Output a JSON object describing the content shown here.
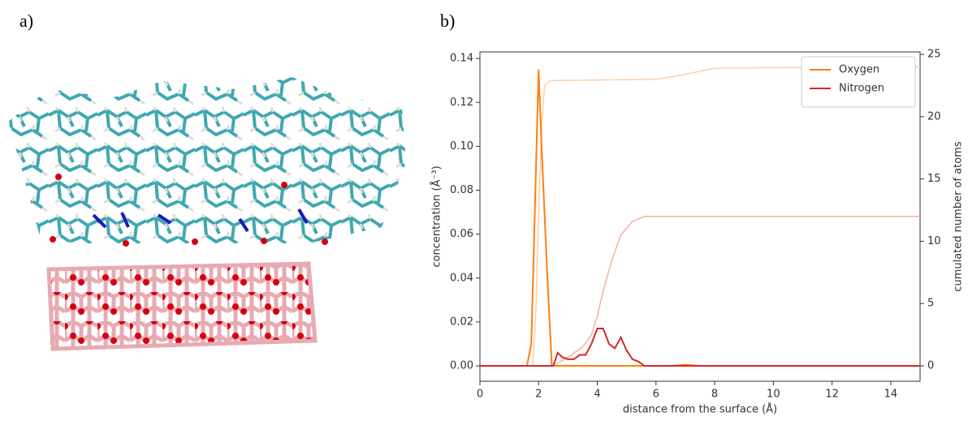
{
  "panel_labels": [
    "a)",
    "b)"
  ],
  "chart_data": {
    "type": "line",
    "xlabel": "distance from the surface (Å)",
    "ylabel": "concentration (Å⁻³)",
    "y2label": "cumulated number of atoms",
    "xlim": [
      0,
      15
    ],
    "xticks": [
      0,
      2,
      4,
      6,
      8,
      10,
      12,
      14
    ],
    "ylim": [
      -0.007,
      0.143
    ],
    "yticks": [
      {
        "value": 0,
        "label": "0.00"
      },
      {
        "value": 0.02,
        "label": "0.02"
      },
      {
        "value": 0.04,
        "label": "0.04"
      },
      {
        "value": 0.06,
        "label": "0.06"
      },
      {
        "value": 0.08,
        "label": "0.08"
      },
      {
        "value": 0.1,
        "label": "0.10"
      },
      {
        "value": 0.12,
        "label": "0.12"
      },
      {
        "value": 0.14,
        "label": "0.14"
      }
    ],
    "y2lim": [
      -1.24,
      25.2
    ],
    "y2ticks": [
      0,
      5,
      10,
      15,
      20,
      25
    ],
    "legend": "upper right",
    "series": [
      {
        "axis": "y2",
        "color": "#fdd0a8",
        "x": [
          0,
          1.8,
          1.9,
          2.0,
          2.1,
          2.2,
          2.4,
          6,
          7,
          8,
          15
        ],
        "values": [
          0,
          0,
          4,
          12,
          19,
          22.5,
          22.9,
          23,
          23.4,
          23.9,
          24
        ]
      },
      {
        "axis": "y2",
        "color": "#f7b09e",
        "x": [
          0,
          2.5,
          3.0,
          3.5,
          3.8,
          4.0,
          4.2,
          4.5,
          4.8,
          5.2,
          5.6,
          15
        ],
        "values": [
          0,
          0,
          0.7,
          1.5,
          2.5,
          4,
          6,
          8.5,
          10.5,
          11.6,
          12,
          12
        ]
      },
      {
        "name": "Oxygen",
        "color": "#ff7f0e",
        "x": [
          0,
          1.6,
          1.75,
          1.85,
          2.0,
          2.1,
          2.3,
          2.45,
          6.5,
          7.0,
          7.5,
          15
        ],
        "values": [
          0,
          0,
          0.01,
          0.06,
          0.135,
          0.1,
          0.04,
          0,
          0,
          0.0005,
          0,
          0
        ]
      },
      {
        "name": "Nitrogen",
        "color": "#d62728",
        "x": [
          0,
          2.5,
          2.65,
          2.8,
          3.0,
          3.2,
          3.4,
          3.6,
          3.8,
          4.0,
          4.2,
          4.4,
          4.6,
          4.8,
          5.0,
          5.2,
          5.4,
          5.6,
          15
        ],
        "values": [
          0,
          0,
          0.006,
          0.004,
          0.003,
          0.003,
          0.005,
          0.005,
          0.01,
          0.017,
          0.017,
          0.01,
          0.008,
          0.013,
          0.007,
          0.003,
          0.002,
          0,
          0
        ]
      }
    ]
  }
}
